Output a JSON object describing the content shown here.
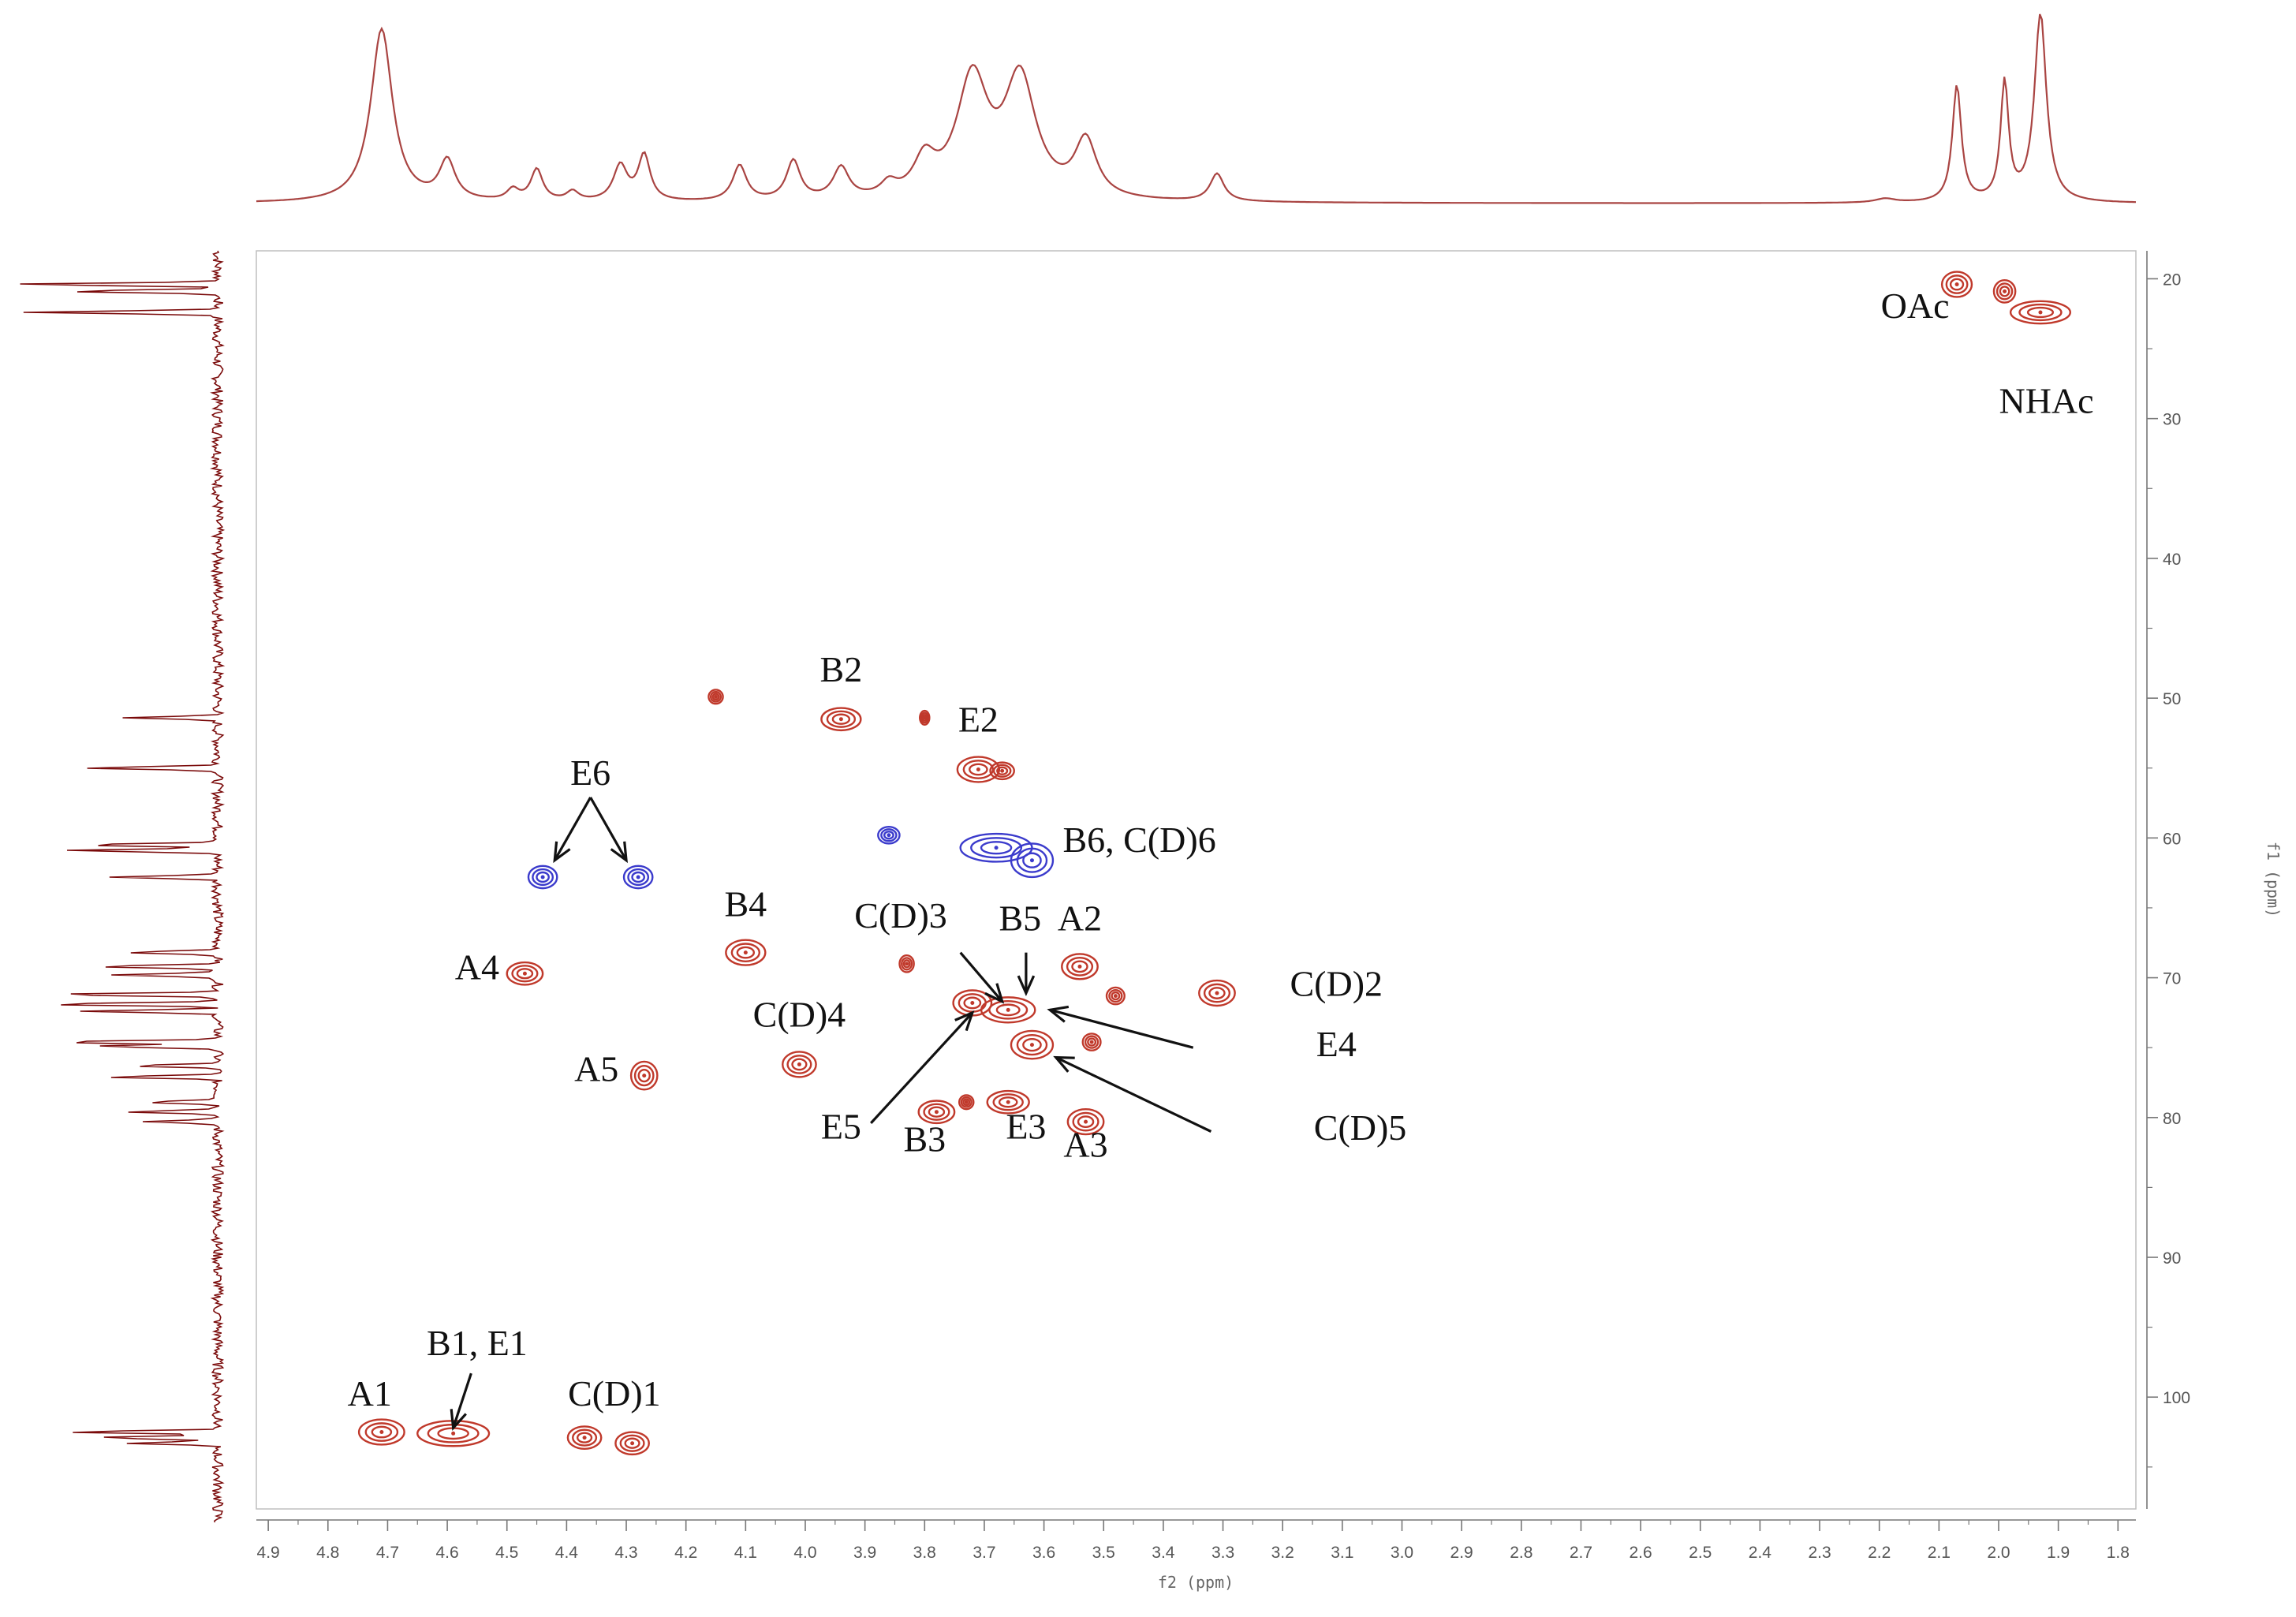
{
  "chart_data": {
    "type": "2d-nmr-contour",
    "xlabel": "f2 (ppm)",
    "ylabel": "f1 (ppm)",
    "xlim": [
      4.92,
      1.77
    ],
    "ylim": [
      18,
      108
    ],
    "xticks": [
      "4.9",
      "4.8",
      "4.7",
      "4.6",
      "4.5",
      "4.4",
      "4.3",
      "4.2",
      "4.1",
      "4.0",
      "3.9",
      "3.8",
      "3.7",
      "3.6",
      "3.5",
      "3.4",
      "3.3",
      "3.2",
      "3.1",
      "3.0",
      "2.9",
      "2.8",
      "2.7",
      "2.6",
      "2.5",
      "2.4",
      "2.3",
      "2.2",
      "2.1",
      "2.0",
      "1.9",
      "1.8"
    ],
    "yticks": [
      "20",
      "30",
      "40",
      "50",
      "60",
      "70",
      "80",
      "90",
      "100"
    ],
    "colors": {
      "positive": "#c0392b",
      "negative": "#3b3bcc",
      "projection": "#a94442",
      "f1_projection": "#7a0a0a"
    },
    "peaks": [
      {
        "x": 4.71,
        "y": 102.5,
        "phase": "positive",
        "sx": 0.038,
        "sy": 0.9
      },
      {
        "x": 4.59,
        "y": 102.6,
        "phase": "positive",
        "sx": 0.06,
        "sy": 0.9
      },
      {
        "x": 4.37,
        "y": 102.9,
        "phase": "positive",
        "sx": 0.028,
        "sy": 0.8
      },
      {
        "x": 4.29,
        "y": 103.3,
        "phase": "positive",
        "sx": 0.028,
        "sy": 0.8
      },
      {
        "x": 4.47,
        "y": 69.7,
        "phase": "positive",
        "sx": 0.03,
        "sy": 0.8
      },
      {
        "x": 4.27,
        "y": 77.0,
        "phase": "positive",
        "sx": 0.022,
        "sy": 1.0
      },
      {
        "x": 4.44,
        "y": 62.8,
        "phase": "negative",
        "sx": 0.024,
        "sy": 0.8
      },
      {
        "x": 4.28,
        "y": 62.8,
        "phase": "negative",
        "sx": 0.024,
        "sy": 0.8
      },
      {
        "x": 4.1,
        "y": 68.2,
        "phase": "positive",
        "sx": 0.033,
        "sy": 0.9
      },
      {
        "x": 4.01,
        "y": 76.2,
        "phase": "positive",
        "sx": 0.028,
        "sy": 0.9
      },
      {
        "x": 3.94,
        "y": 51.5,
        "phase": "positive",
        "sx": 0.033,
        "sy": 0.8
      },
      {
        "x": 3.71,
        "y": 55.1,
        "phase": "positive",
        "sx": 0.035,
        "sy": 0.9
      },
      {
        "x": 3.67,
        "y": 55.2,
        "phase": "positive",
        "sx": 0.02,
        "sy": 0.6
      },
      {
        "x": 3.68,
        "y": 60.7,
        "phase": "negative",
        "sx": 0.06,
        "sy": 1.0
      },
      {
        "x": 3.62,
        "y": 61.6,
        "phase": "negative",
        "sx": 0.035,
        "sy": 1.2
      },
      {
        "x": 3.86,
        "y": 59.8,
        "phase": "negative",
        "sx": 0.018,
        "sy": 0.6
      },
      {
        "x": 3.72,
        "y": 71.8,
        "phase": "positive",
        "sx": 0.032,
        "sy": 0.9
      },
      {
        "x": 3.66,
        "y": 72.3,
        "phase": "positive",
        "sx": 0.045,
        "sy": 0.9
      },
      {
        "x": 3.62,
        "y": 74.8,
        "phase": "positive",
        "sx": 0.035,
        "sy": 1.0
      },
      {
        "x": 3.54,
        "y": 69.2,
        "phase": "positive",
        "sx": 0.03,
        "sy": 0.9
      },
      {
        "x": 3.31,
        "y": 71.1,
        "phase": "positive",
        "sx": 0.03,
        "sy": 0.9
      },
      {
        "x": 3.52,
        "y": 74.6,
        "phase": "positive",
        "sx": 0.015,
        "sy": 0.6
      },
      {
        "x": 3.48,
        "y": 71.3,
        "phase": "positive",
        "sx": 0.015,
        "sy": 0.6
      },
      {
        "x": 3.78,
        "y": 79.6,
        "phase": "positive",
        "sx": 0.03,
        "sy": 0.8
      },
      {
        "x": 3.66,
        "y": 78.9,
        "phase": "positive",
        "sx": 0.035,
        "sy": 0.8
      },
      {
        "x": 3.53,
        "y": 80.3,
        "phase": "positive",
        "sx": 0.03,
        "sy": 0.9
      },
      {
        "x": 3.73,
        "y": 78.9,
        "phase": "positive",
        "sx": 0.012,
        "sy": 0.5
      },
      {
        "x": 4.15,
        "y": 49.9,
        "phase": "positive",
        "sx": 0.012,
        "sy": 0.5
      },
      {
        "x": 3.8,
        "y": 51.4,
        "phase": "positive",
        "sx": 0.008,
        "sy": 0.5
      },
      {
        "x": 3.83,
        "y": 69.0,
        "phase": "positive",
        "sx": 0.012,
        "sy": 0.6
      },
      {
        "x": 2.07,
        "y": 20.4,
        "phase": "positive",
        "sx": 0.025,
        "sy": 0.9
      },
      {
        "x": 1.99,
        "y": 20.9,
        "phase": "positive",
        "sx": 0.018,
        "sy": 0.8
      },
      {
        "x": 1.93,
        "y": 22.4,
        "phase": "positive",
        "sx": 0.05,
        "sy": 0.8
      }
    ],
    "annotations": [
      {
        "text": "OAc",
        "x": 2.14,
        "y": 22.8
      },
      {
        "text": "NHAc",
        "x": 1.92,
        "y": 29.6
      },
      {
        "text": "B2",
        "x": 3.94,
        "y": 48.8
      },
      {
        "text": "E2",
        "x": 3.71,
        "y": 52.4
      },
      {
        "text": "E6",
        "x": 4.36,
        "y": 56.2
      },
      {
        "text": "B6, C(D)6",
        "x": 3.44,
        "y": 61.0
      },
      {
        "text": "B4",
        "x": 4.1,
        "y": 65.6
      },
      {
        "text": "C(D)3",
        "x": 3.84,
        "y": 66.4
      },
      {
        "text": "B5",
        "x": 3.64,
        "y": 66.6
      },
      {
        "text": "A2",
        "x": 3.54,
        "y": 66.6
      },
      {
        "text": "A4",
        "x": 4.55,
        "y": 70.1
      },
      {
        "text": "C(D)2",
        "x": 3.11,
        "y": 71.3
      },
      {
        "text": "C(D)4",
        "x": 4.01,
        "y": 73.5
      },
      {
        "text": "E4",
        "x": 3.11,
        "y": 75.6
      },
      {
        "text": "A5",
        "x": 4.35,
        "y": 77.4
      },
      {
        "text": "E5",
        "x": 3.94,
        "y": 81.5
      },
      {
        "text": "B3",
        "x": 3.8,
        "y": 82.4
      },
      {
        "text": "E3",
        "x": 3.63,
        "y": 81.5
      },
      {
        "text": "A3",
        "x": 3.53,
        "y": 82.8
      },
      {
        "text": "C(D)5",
        "x": 3.07,
        "y": 81.6
      },
      {
        "text": "B1, E1",
        "x": 4.55,
        "y": 97.0
      },
      {
        "text": "A1",
        "x": 4.73,
        "y": 100.6
      },
      {
        "text": "C(D)1",
        "x": 4.32,
        "y": 100.6
      }
    ],
    "arrows": [
      {
        "from": [
          4.36,
          57.1
        ],
        "to": [
          4.42,
          61.6
        ]
      },
      {
        "from": [
          4.36,
          57.1
        ],
        "to": [
          4.3,
          61.6
        ]
      },
      {
        "from": [
          3.74,
          68.2
        ],
        "to": [
          3.67,
          71.7
        ]
      },
      {
        "from": [
          3.63,
          68.2
        ],
        "to": [
          3.63,
          71.1
        ]
      },
      {
        "from": [
          3.35,
          75.0
        ],
        "to": [
          3.59,
          72.3
        ]
      },
      {
        "from": [
          3.89,
          80.4
        ],
        "to": [
          3.72,
          72.5
        ]
      },
      {
        "from": [
          3.32,
          81.0
        ],
        "to": [
          3.58,
          75.7
        ]
      },
      {
        "from": [
          4.56,
          98.3
        ],
        "to": [
          4.59,
          102.2
        ]
      }
    ]
  }
}
